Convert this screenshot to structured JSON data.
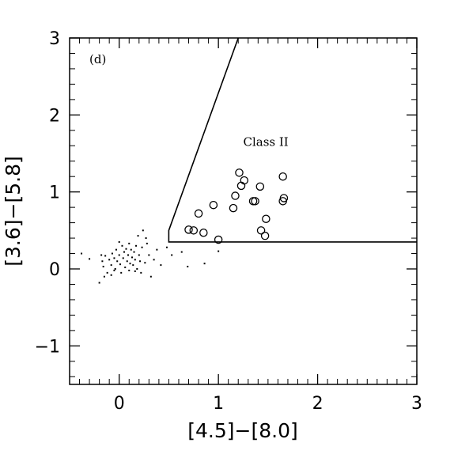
{
  "chart_data": {
    "type": "scatter",
    "panel_label": "(d)",
    "xlabel": "[4.5]−[8.0]",
    "ylabel": "[3.6]−[5.8]",
    "xlim": [
      -0.5,
      3.0
    ],
    "ylim": [
      -1.5,
      3.0
    ],
    "x_ticks": [
      0,
      1,
      2,
      3
    ],
    "x_tick_labels": [
      "0",
      "1",
      "2",
      "3"
    ],
    "y_ticks": [
      -1,
      0,
      1,
      2,
      3
    ],
    "y_tick_labels": [
      "−1",
      "0",
      "1",
      "2",
      "3"
    ],
    "annotations": [
      {
        "text": "Class II",
        "x": 1.25,
        "y": 1.6
      }
    ],
    "region_boundary": [
      [
        1.2,
        3.0
      ],
      [
        0.5,
        0.5
      ],
      [
        0.5,
        0.35
      ],
      [
        3.0,
        0.35
      ]
    ],
    "grid": false,
    "legend": "none",
    "series": [
      {
        "marker": "open-circle",
        "points": [
          [
            0.7,
            0.51
          ],
          [
            0.75,
            0.5
          ],
          [
            0.8,
            0.72
          ],
          [
            0.85,
            0.47
          ],
          [
            0.95,
            0.83
          ],
          [
            1.0,
            0.38
          ],
          [
            1.15,
            0.79
          ],
          [
            1.17,
            0.95
          ],
          [
            1.21,
            1.25
          ],
          [
            1.23,
            1.08
          ],
          [
            1.26,
            1.15
          ],
          [
            1.35,
            0.88
          ],
          [
            1.37,
            0.88
          ],
          [
            1.42,
            1.07
          ],
          [
            1.43,
            0.5
          ],
          [
            1.47,
            0.43
          ],
          [
            1.48,
            0.65
          ],
          [
            1.65,
            1.2
          ],
          [
            1.65,
            0.88
          ],
          [
            1.66,
            0.92
          ]
        ]
      },
      {
        "marker": "dot",
        "points": [
          [
            -0.38,
            0.2
          ],
          [
            -0.3,
            0.13
          ],
          [
            -0.2,
            -0.18
          ],
          [
            -0.18,
            0.18
          ],
          [
            -0.17,
            0.1
          ],
          [
            -0.16,
            0.03
          ],
          [
            -0.15,
            -0.1
          ],
          [
            -0.14,
            0.17
          ],
          [
            -0.12,
            -0.05
          ],
          [
            -0.1,
            0.12
          ],
          [
            -0.08,
            0.05
          ],
          [
            -0.08,
            -0.08
          ],
          [
            -0.07,
            0.2
          ],
          [
            -0.05,
            0.14
          ],
          [
            -0.04,
            0.0
          ],
          [
            -0.03,
            0.25
          ],
          [
            -0.02,
            0.1
          ],
          [
            0.0,
            0.18
          ],
          [
            0.01,
            0.06
          ],
          [
            0.02,
            -0.05
          ],
          [
            0.03,
            0.3
          ],
          [
            0.04,
            0.14
          ],
          [
            0.05,
            0.22
          ],
          [
            0.06,
            0.02
          ],
          [
            0.08,
            0.1
          ],
          [
            0.09,
            0.18
          ],
          [
            0.1,
            0.33
          ],
          [
            0.11,
            0.07
          ],
          [
            0.12,
            0.25
          ],
          [
            0.13,
            0.15
          ],
          [
            0.14,
            0.05
          ],
          [
            0.15,
            0.22
          ],
          [
            0.16,
            0.12
          ],
          [
            0.17,
            0.3
          ],
          [
            0.18,
            0.0
          ],
          [
            0.19,
            0.43
          ],
          [
            0.2,
            0.18
          ],
          [
            0.21,
            0.1
          ],
          [
            0.22,
            -0.05
          ],
          [
            0.23,
            0.28
          ],
          [
            0.24,
            0.5
          ],
          [
            0.26,
            0.08
          ],
          [
            0.28,
            0.33
          ],
          [
            0.3,
            0.18
          ],
          [
            0.32,
            -0.1
          ],
          [
            0.35,
            0.12
          ],
          [
            0.38,
            0.25
          ],
          [
            0.42,
            0.05
          ],
          [
            0.48,
            0.28
          ],
          [
            0.53,
            0.18
          ],
          [
            0.63,
            0.22
          ],
          [
            0.69,
            0.03
          ],
          [
            0.86,
            0.07
          ],
          [
            1.0,
            0.23
          ],
          [
            0.1,
            -0.02
          ],
          [
            0.0,
            0.35
          ],
          [
            -0.05,
            -0.02
          ],
          [
            0.16,
            -0.03
          ],
          [
            0.27,
            0.4
          ],
          [
            0.07,
            0.26
          ]
        ]
      }
    ]
  }
}
